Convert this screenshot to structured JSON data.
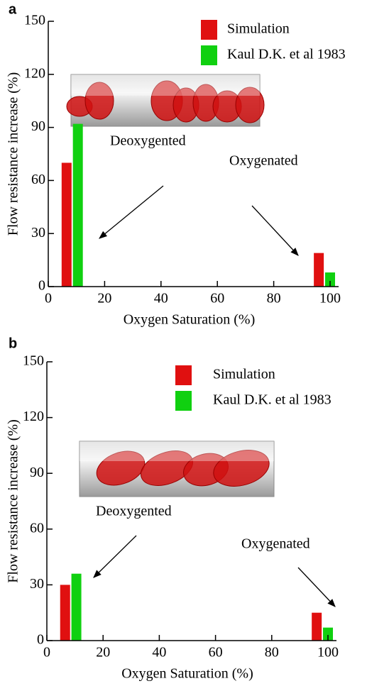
{
  "chart_data": [
    {
      "type": "bar",
      "panel_label": "a",
      "x_label": "Oxygen Saturation (%)",
      "y_label": "Flow resistance increase (%)",
      "xlim": [
        0,
        100
      ],
      "xticks": [
        0,
        20,
        40,
        60,
        80,
        100
      ],
      "ylim": [
        0,
        150
      ],
      "yticks": [
        0,
        30,
        60,
        90,
        120,
        150
      ],
      "series": [
        {
          "name": "Simulation",
          "color": "#e01010",
          "x": [
            6.5,
            96
          ],
          "values": [
            70,
            19
          ]
        },
        {
          "name": "Kaul D.K. et al 1983",
          "color": "#10d010",
          "x": [
            10.5,
            100
          ],
          "values": [
            92,
            8
          ]
        }
      ],
      "annotations": [
        "Deoxygented",
        "Oxygenated"
      ]
    },
    {
      "type": "bar",
      "panel_label": "b",
      "x_label": "Oxygen Saturation (%)",
      "y_label": "Flow resistance increase (%)",
      "xlim": [
        0,
        100
      ],
      "xticks": [
        0,
        20,
        40,
        60,
        80,
        100
      ],
      "ylim": [
        0,
        150
      ],
      "yticks": [
        0,
        30,
        60,
        90,
        120,
        150
      ],
      "series": [
        {
          "name": "Simulation",
          "color": "#e01010",
          "x": [
            6.5,
            96
          ],
          "values": [
            30,
            15
          ]
        },
        {
          "name": "Kaul D.K. et al 1983",
          "color": "#10d010",
          "x": [
            10.5,
            100
          ],
          "values": [
            36,
            7
          ]
        }
      ],
      "annotations": [
        "Deoxygented",
        "Oxygenated"
      ]
    }
  ]
}
